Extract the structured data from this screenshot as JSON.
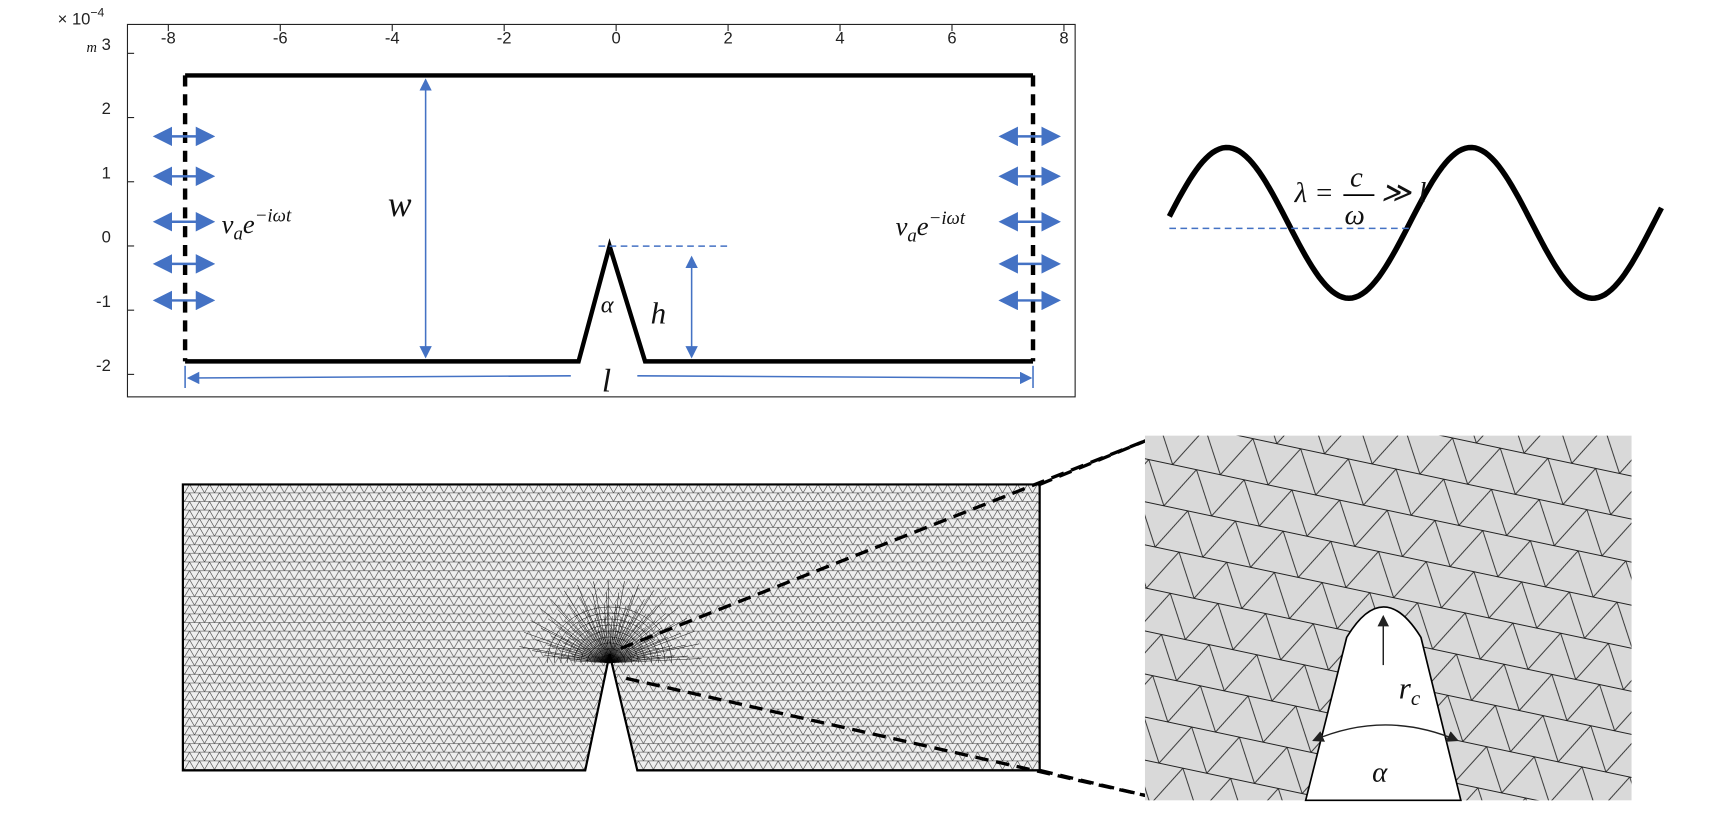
{
  "schematic": {
    "axis_unit": {
      "times": "× 10",
      "exponent": "−4",
      "unit": "m"
    },
    "xticks": [
      -8,
      -6,
      -4,
      -2,
      0,
      2,
      4,
      6,
      8
    ],
    "yticks": [
      3,
      2,
      1,
      0,
      -1,
      -2
    ],
    "xlim": [
      -8.73,
      8.2
    ],
    "ylim": [
      -2.35,
      3.45
    ],
    "labels": {
      "w": "w",
      "h": "h",
      "alpha": "α",
      "l": "l"
    },
    "boundary_left": {
      "v": "v",
      "sub": "a",
      "base": "e",
      "sup": "−iωt"
    },
    "boundary_right": {
      "v": "v",
      "sub": "a",
      "base": "e",
      "sup": "−iωt"
    }
  },
  "wave": {
    "lambda": "λ =",
    "numerator": "c",
    "denominator": "ω",
    "relation": "≫ l"
  },
  "zoom": {
    "radius": "r",
    "radius_sub": "c",
    "angle": "α"
  }
}
